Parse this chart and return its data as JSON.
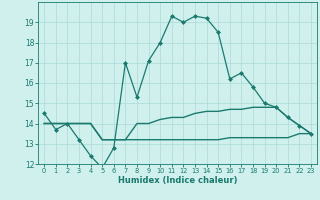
{
  "xlabel": "Humidex (Indice chaleur)",
  "x": [
    0,
    1,
    2,
    3,
    4,
    5,
    6,
    7,
    8,
    9,
    10,
    11,
    12,
    13,
    14,
    15,
    16,
    17,
    18,
    19,
    20,
    21,
    22,
    23
  ],
  "line1": [
    14.5,
    13.7,
    14.0,
    13.2,
    12.4,
    11.8,
    12.8,
    17.0,
    15.3,
    17.1,
    18.0,
    19.3,
    19.0,
    19.3,
    19.2,
    18.5,
    16.2,
    16.5,
    15.8,
    15.0,
    14.8,
    14.3,
    13.9,
    13.5
  ],
  "line2": [
    14.0,
    14.0,
    14.0,
    14.0,
    14.0,
    13.2,
    13.2,
    13.2,
    14.0,
    14.0,
    14.2,
    14.3,
    14.3,
    14.5,
    14.6,
    14.6,
    14.7,
    14.7,
    14.8,
    14.8,
    14.8,
    14.3,
    13.9,
    13.5
  ],
  "line3": [
    14.0,
    14.0,
    14.0,
    14.0,
    14.0,
    13.2,
    13.2,
    13.2,
    13.2,
    13.2,
    13.2,
    13.2,
    13.2,
    13.2,
    13.2,
    13.2,
    13.3,
    13.3,
    13.3,
    13.3,
    13.3,
    13.3,
    13.5,
    13.5
  ],
  "color": "#1a7a6e",
  "bg_color": "#d0f0ee",
  "grid_color": "#b0ddd8",
  "ylim": [
    12,
    20
  ],
  "yticks": [
    12,
    13,
    14,
    15,
    16,
    17,
    18,
    19
  ],
  "xlim": [
    -0.5,
    23.5
  ]
}
